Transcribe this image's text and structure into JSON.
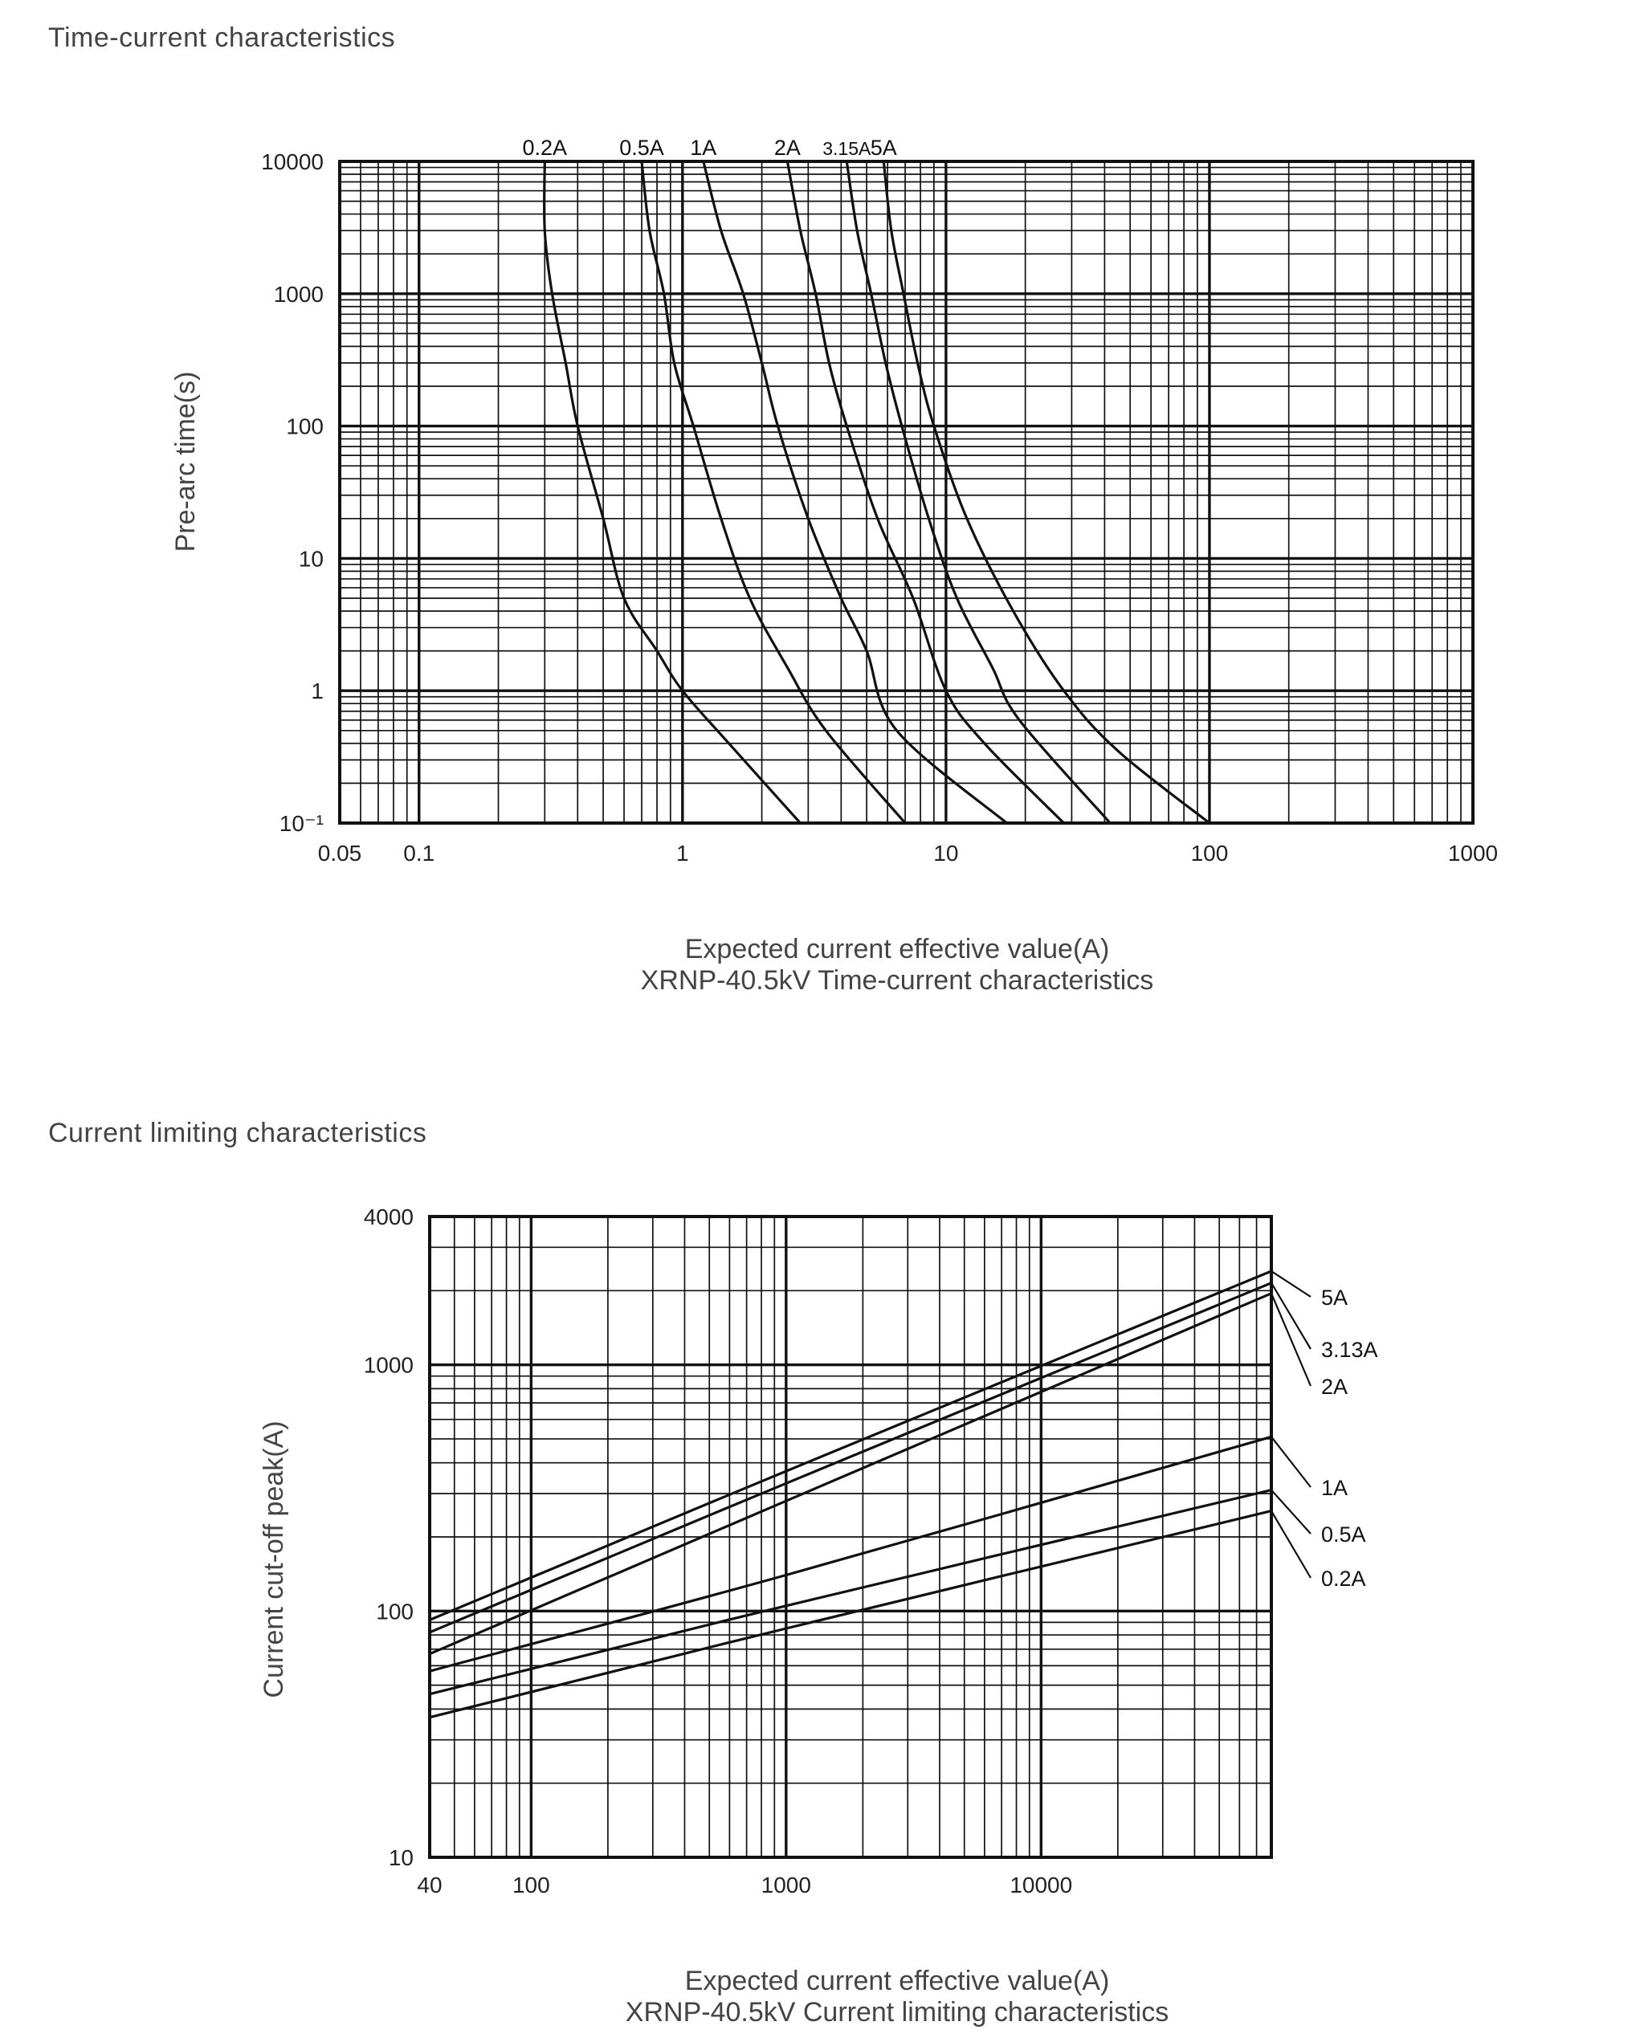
{
  "sections": {
    "time_current_title": "Time-current characteristics",
    "current_limiting_title": "Current limiting characteristics"
  },
  "chart_data": [
    {
      "type": "line",
      "title": "XRNP-40.5kV Time-current characteristics",
      "xlabel": "Expected current effective value(A)",
      "ylabel": "Pre-arc time(s)",
      "x_scale": "log",
      "y_scale": "log",
      "xlim": [
        0.05,
        1000
      ],
      "ylim": [
        0.1,
        10000
      ],
      "x_ticks": [
        "0.05",
        "0.1",
        "1",
        "10",
        "100",
        "1000"
      ],
      "y_ticks": [
        "10000",
        "1000",
        "100",
        "10",
        "1",
        "10⁻¹"
      ],
      "grid": true,
      "series": [
        {
          "name": "0.2A",
          "points": [
            [
              0.3,
              10000
            ],
            [
              0.3,
              3000
            ],
            [
              0.32,
              1000
            ],
            [
              0.36,
              300
            ],
            [
              0.4,
              100
            ],
            [
              0.5,
              20
            ],
            [
              0.6,
              5
            ],
            [
              0.8,
              2
            ],
            [
              1.0,
              1
            ],
            [
              1.5,
              0.4
            ],
            [
              2.8,
              0.1
            ]
          ]
        },
        {
          "name": "0.5A",
          "points": [
            [
              0.7,
              10000
            ],
            [
              0.75,
              3000
            ],
            [
              0.85,
              1000
            ],
            [
              0.93,
              300
            ],
            [
              1.1,
              100
            ],
            [
              1.4,
              20
            ],
            [
              1.8,
              5
            ],
            [
              2.5,
              1.5
            ],
            [
              3.5,
              0.5
            ],
            [
              7,
              0.1
            ]
          ]
        },
        {
          "name": "1A",
          "points": [
            [
              1.2,
              10000
            ],
            [
              1.4,
              3000
            ],
            [
              1.7,
              1000
            ],
            [
              2.0,
              300
            ],
            [
              2.3,
              100
            ],
            [
              3.0,
              20
            ],
            [
              4.0,
              5
            ],
            [
              5.0,
              2
            ],
            [
              6.5,
              0.5
            ],
            [
              17,
              0.1
            ]
          ]
        },
        {
          "name": "2A",
          "points": [
            [
              2.5,
              10000
            ],
            [
              2.8,
              3000
            ],
            [
              3.2,
              1000
            ],
            [
              3.6,
              300
            ],
            [
              4.2,
              100
            ],
            [
              5.5,
              20
            ],
            [
              7.5,
              5
            ],
            [
              10,
              1
            ],
            [
              14,
              0.4
            ],
            [
              28,
              0.1
            ]
          ]
        },
        {
          "name": "3.15A",
          "points": [
            [
              4.2,
              10000
            ],
            [
              4.6,
              3000
            ],
            [
              5.2,
              1000
            ],
            [
              5.9,
              300
            ],
            [
              6.8,
              100
            ],
            [
              8.6,
              20
            ],
            [
              11,
              5
            ],
            [
              15,
              1.5
            ],
            [
              19,
              0.6
            ],
            [
              42,
              0.1
            ]
          ]
        },
        {
          "name": "5A",
          "points": [
            [
              5.8,
              10000
            ],
            [
              6.2,
              3000
            ],
            [
              6.9,
              1000
            ],
            [
              7.8,
              300
            ],
            [
              9.0,
              100
            ],
            [
              12,
              20
            ],
            [
              18,
              4
            ],
            [
              28,
              1
            ],
            [
              45,
              0.35
            ],
            [
              100,
              0.1
            ]
          ]
        }
      ]
    },
    {
      "type": "line",
      "title": "XRNP-40.5kV Current limiting characteristics",
      "xlabel": "Expected current effective value(A)",
      "ylabel": "Current cut-off peak(A)",
      "x_scale": "log",
      "y_scale": "log",
      "xlim": [
        40,
        80000
      ],
      "ylim": [
        10,
        4000
      ],
      "x_ticks": [
        "40",
        "100",
        "1000",
        "10000"
      ],
      "y_ticks": [
        "4000",
        "1000",
        "100",
        "10"
      ],
      "grid": true,
      "series": [
        {
          "name": "5A",
          "points": [
            [
              40,
              92
            ],
            [
              1000,
              370
            ],
            [
              80000,
              2400
            ]
          ]
        },
        {
          "name": "3.13A",
          "points": [
            [
              40,
              82
            ],
            [
              1000,
              330
            ],
            [
              80000,
              2150
            ]
          ]
        },
        {
          "name": "2A",
          "points": [
            [
              40,
              67
            ],
            [
              1000,
              280
            ],
            [
              80000,
              1950
            ]
          ]
        },
        {
          "name": "1A",
          "points": [
            [
              40,
              57
            ],
            [
              1000,
              140
            ],
            [
              80000,
              510
            ]
          ]
        },
        {
          "name": "0.5A",
          "points": [
            [
              40,
              46
            ],
            [
              1000,
              105
            ],
            [
              80000,
              310
            ]
          ]
        },
        {
          "name": "0.2A",
          "points": [
            [
              40,
              37
            ],
            [
              1000,
              85
            ],
            [
              80000,
              255
            ]
          ]
        }
      ]
    }
  ]
}
